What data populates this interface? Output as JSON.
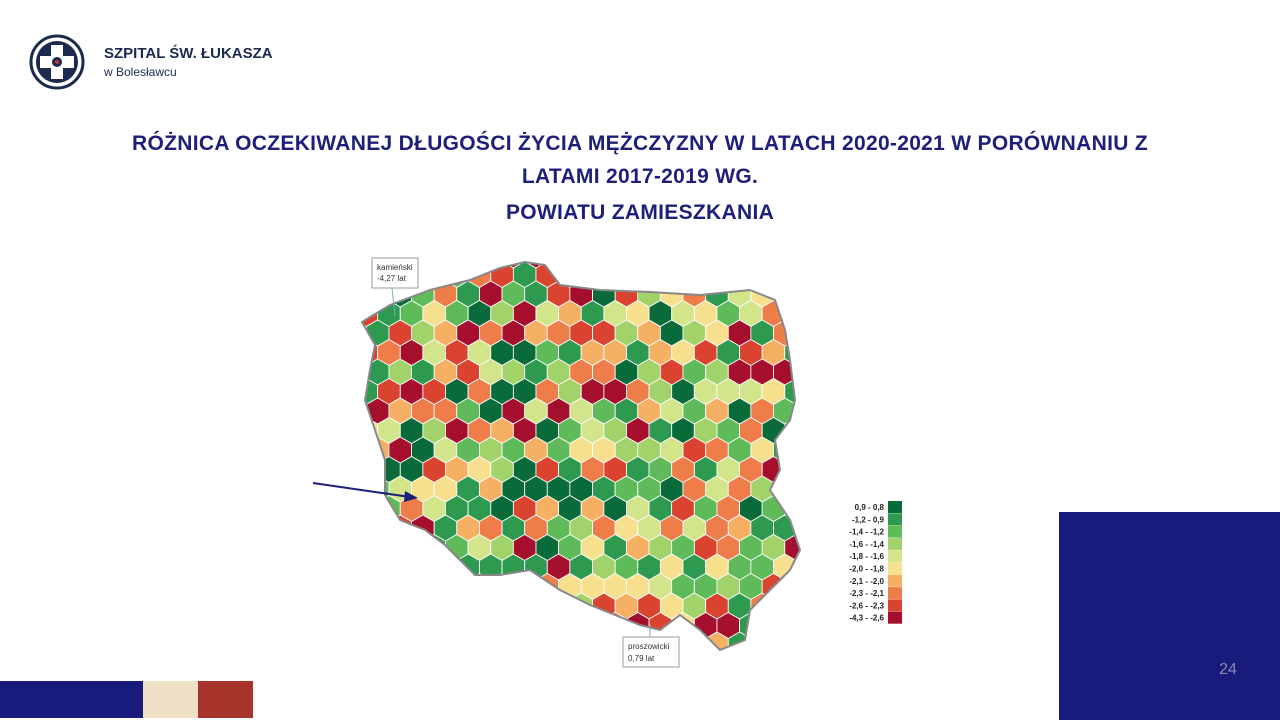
{
  "header": {
    "name": "SZPITAL ŚW. ŁUKASZA",
    "subname": "w Bolesławcu"
  },
  "title": {
    "lines": [
      "RÓŻNICA OCZEKIWANEJ DŁUGOŚCI ŻYCIA MĘŻCZYZNY W LATACH 2020-2021 W PORÓWNANIU Z",
      "LATAMI 2017-2019 WG.",
      "POWIATU ZAMIESZKANIA"
    ]
  },
  "map": {
    "callouts": [
      {
        "name": "kamieński",
        "value": "-4,27 lat"
      },
      {
        "name": "proszowicki",
        "value": "0,79 lat"
      }
    ],
    "legend": [
      {
        "label": "0,9 - 0,8",
        "color": "#0a6b3a"
      },
      {
        "label": "-1,2 - 0,9",
        "color": "#2e9a4f"
      },
      {
        "label": "-1,4 - -1,2",
        "color": "#5fba5a"
      },
      {
        "label": "-1,6 - -1,4",
        "color": "#a2d36a"
      },
      {
        "label": "-1,8 - -1,6",
        "color": "#d3e58a"
      },
      {
        "label": "-2,0 - -1,8",
        "color": "#f6e08e"
      },
      {
        "label": "-2,1 - -2,0",
        "color": "#f6b064"
      },
      {
        "label": "-2,3 - -2,1",
        "color": "#ee7d4a"
      },
      {
        "label": "-2,6 - -2,3",
        "color": "#d9432f"
      },
      {
        "label": "-4,3 - -2,6",
        "color": "#a50f2d"
      }
    ]
  },
  "footer": {
    "page": "24"
  }
}
